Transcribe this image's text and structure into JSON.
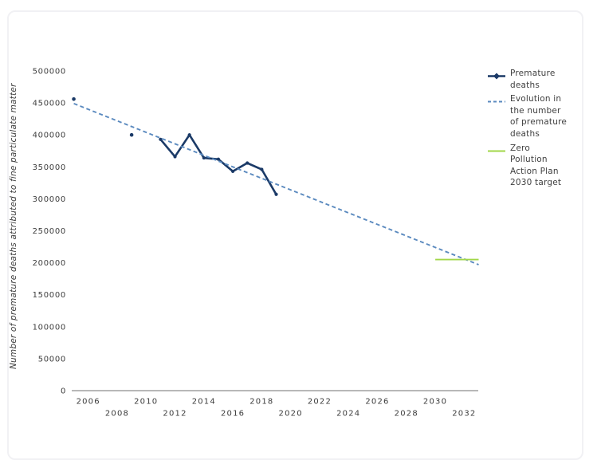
{
  "accent_colors": {
    "premature_deaths_line": "#1b3a67",
    "evolution_trend_line": "#5b8abf",
    "target_line": "#a2d748",
    "axis_line": "#a0a0a0",
    "tick_text": "#3c3c3c",
    "card_border": "#f1f1f4"
  },
  "legend": {
    "items": [
      {
        "label": "Premature\ndeaths",
        "color": "#1b3a67",
        "style": "line-marker"
      },
      {
        "label": "Evolution in\nthe number\nof premature\ndeaths",
        "color": "#5b8abf",
        "style": "dashed"
      },
      {
        "label": "Zero\nPollution\nAction Plan\n2030 target",
        "color": "#a2d748",
        "style": "solid"
      }
    ]
  },
  "chart_data": {
    "type": "line",
    "title": "",
    "xlabel": "",
    "ylabel": "Number of premature deaths attributed to fine particulate matter",
    "ylim": [
      0,
      500000
    ],
    "xlim_years": [
      2004.9,
      2033
    ],
    "grid": false,
    "legend_position": "right",
    "y_ticks": [
      0,
      50000,
      100000,
      150000,
      200000,
      250000,
      300000,
      350000,
      400000,
      450000,
      500000
    ],
    "x_ticks_row1": [
      2006,
      2010,
      2014,
      2018,
      2022,
      2026,
      2030
    ],
    "x_ticks_row2": [
      2008,
      2012,
      2016,
      2020,
      2024,
      2028,
      2032
    ],
    "series": [
      {
        "name": "Premature deaths",
        "style": "solid-markers",
        "color": "#1b3a67",
        "isolated_points": [
          {
            "year": 2005,
            "value": 456000
          },
          {
            "year": 2009,
            "value": 400000
          }
        ],
        "line_points": [
          {
            "year": 2011,
            "value": 393000
          },
          {
            "year": 2012,
            "value": 366000
          },
          {
            "year": 2013,
            "value": 400000
          },
          {
            "year": 2014,
            "value": 364000
          },
          {
            "year": 2015,
            "value": 362000
          },
          {
            "year": 2016,
            "value": 343000
          },
          {
            "year": 2017,
            "value": 356000
          },
          {
            "year": 2018,
            "value": 346000
          },
          {
            "year": 2019,
            "value": 307000
          }
        ]
      },
      {
        "name": "Evolution in the number of premature deaths",
        "style": "dashed",
        "color": "#5b8abf",
        "isolated_points": [],
        "line_points": [
          {
            "year": 2005,
            "value": 449000
          },
          {
            "year": 2033,
            "value": 197000
          }
        ]
      },
      {
        "name": "Zero Pollution Action Plan 2030 target",
        "style": "solid",
        "color": "#a2d748",
        "isolated_points": [],
        "line_points": [
          {
            "year": 2030,
            "value": 205000
          },
          {
            "year": 2033,
            "value": 205000
          }
        ]
      }
    ]
  }
}
